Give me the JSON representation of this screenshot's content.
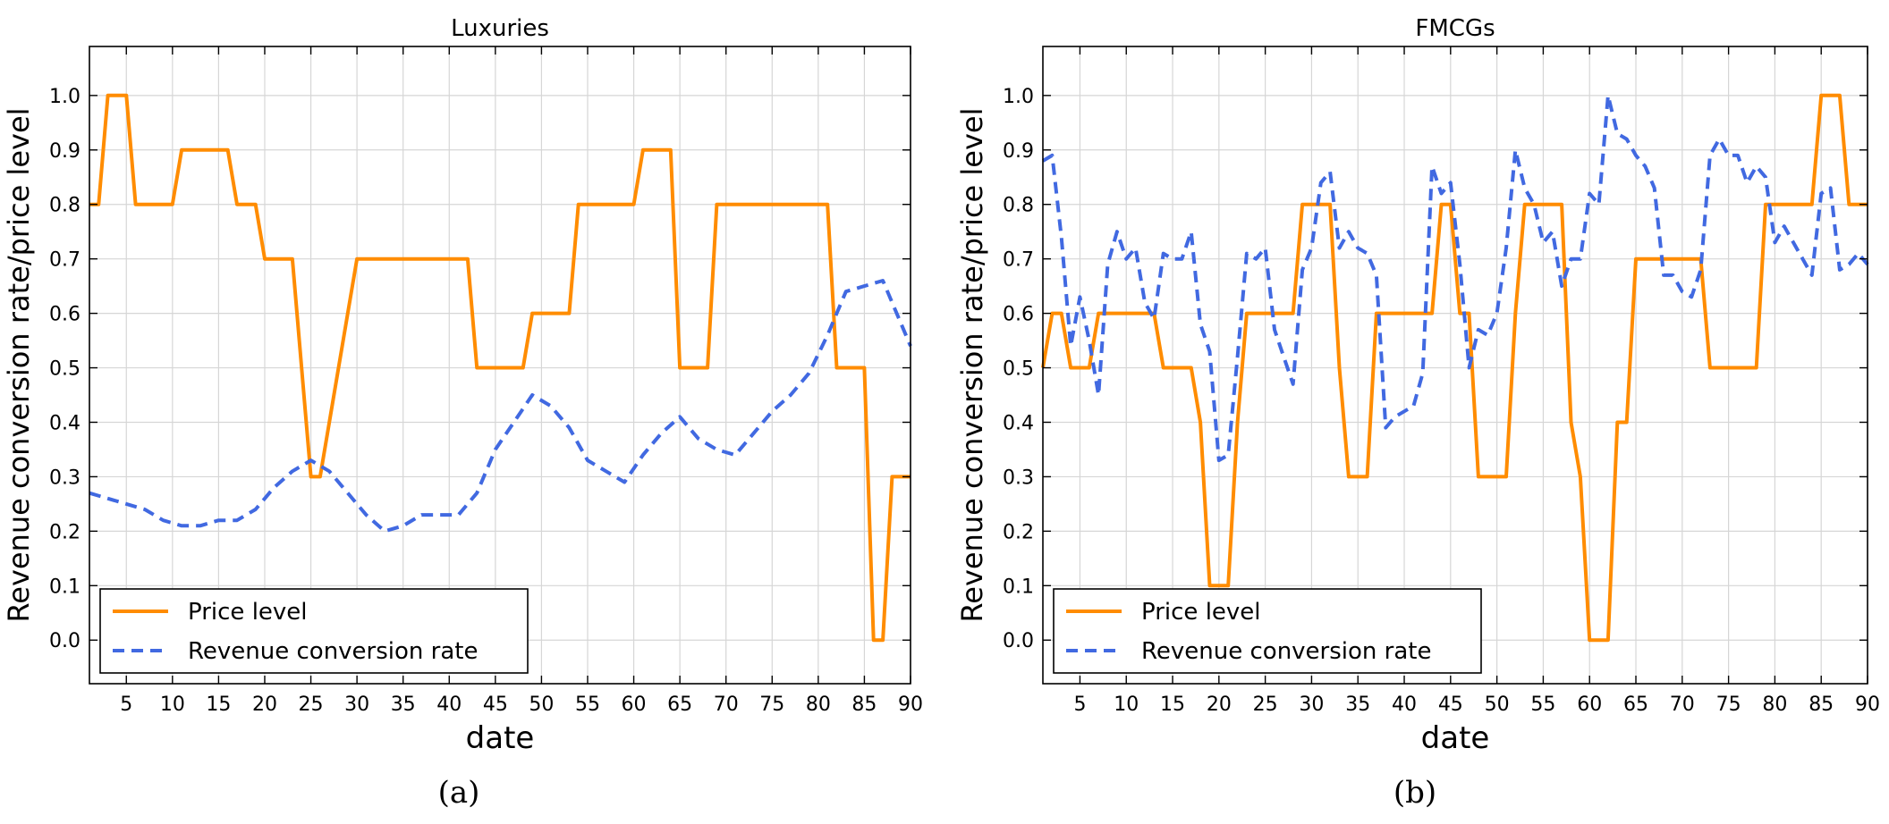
{
  "figure": {
    "captions": [
      "(a)",
      "(b)"
    ]
  },
  "chart_data": [
    {
      "type": "line",
      "title": "Luxuries",
      "xlabel": "date",
      "ylabel": "Revenue conversion rate/price level",
      "xlim": [
        1,
        90
      ],
      "ylim": [
        -0.08,
        1.09
      ],
      "xticks": [
        5,
        10,
        15,
        20,
        25,
        30,
        35,
        40,
        45,
        50,
        55,
        60,
        65,
        70,
        75,
        80,
        85,
        90
      ],
      "yticks": [
        0.0,
        0.1,
        0.2,
        0.3,
        0.4,
        0.5,
        0.6,
        0.7,
        0.8,
        0.9,
        1.0
      ],
      "grid": true,
      "legend": "lower-left",
      "series": [
        {
          "name": "Price level",
          "style": "solid",
          "color": "#ff8c00",
          "x": [
            1,
            2,
            3,
            4,
            5,
            6,
            7,
            8,
            9,
            10,
            11,
            12,
            13,
            14,
            15,
            16,
            17,
            18,
            19,
            20,
            21,
            22,
            23,
            24,
            25,
            26,
            27,
            28,
            29,
            30,
            31,
            32,
            33,
            34,
            35,
            36,
            37,
            38,
            39,
            40,
            41,
            42,
            43,
            44,
            45,
            46,
            47,
            48,
            49,
            50,
            51,
            52,
            53,
            54,
            55,
            56,
            57,
            58,
            59,
            60,
            61,
            62,
            63,
            64,
            65,
            66,
            67,
            68,
            69,
            70,
            71,
            72,
            73,
            74,
            75,
            76,
            77,
            78,
            79,
            80,
            81,
            82,
            83,
            84,
            85,
            86,
            87,
            88,
            89,
            90
          ],
          "y": [
            0.8,
            0.8,
            1.0,
            1.0,
            1.0,
            0.8,
            0.8,
            0.8,
            0.8,
            0.8,
            0.9,
            0.9,
            0.9,
            0.9,
            0.9,
            0.9,
            0.8,
            0.8,
            0.8,
            0.7,
            0.7,
            0.7,
            0.7,
            0.5,
            0.3,
            0.3,
            0.4,
            0.5,
            0.6,
            0.7,
            0.7,
            0.7,
            0.7,
            0.7,
            0.7,
            0.7,
            0.7,
            0.7,
            0.7,
            0.7,
            0.7,
            0.7,
            0.5,
            0.5,
            0.5,
            0.5,
            0.5,
            0.5,
            0.6,
            0.6,
            0.6,
            0.6,
            0.6,
            0.8,
            0.8,
            0.8,
            0.8,
            0.8,
            0.8,
            0.8,
            0.9,
            0.9,
            0.9,
            0.9,
            0.5,
            0.5,
            0.5,
            0.5,
            0.8,
            0.8,
            0.8,
            0.8,
            0.8,
            0.8,
            0.8,
            0.8,
            0.8,
            0.8,
            0.8,
            0.8,
            0.8,
            0.5,
            0.5,
            0.5,
            0.5,
            0.0,
            0.0,
            0.3,
            0.3,
            0.3
          ]
        },
        {
          "name": "Revenue conversion rate",
          "style": "dashed",
          "color": "#4169e1",
          "x": [
            1,
            3,
            5,
            7,
            9,
            11,
            13,
            15,
            17,
            19,
            21,
            23,
            25,
            27,
            29,
            31,
            33,
            35,
            37,
            39,
            41,
            43,
            45,
            47,
            49,
            51,
            53,
            55,
            57,
            59,
            61,
            63,
            65,
            67,
            69,
            71,
            73,
            75,
            77,
            79,
            81,
            83,
            85,
            87,
            89,
            90
          ],
          "y": [
            0.27,
            0.26,
            0.25,
            0.24,
            0.22,
            0.21,
            0.21,
            0.22,
            0.22,
            0.24,
            0.28,
            0.31,
            0.33,
            0.31,
            0.27,
            0.23,
            0.2,
            0.21,
            0.23,
            0.23,
            0.23,
            0.27,
            0.35,
            0.4,
            0.45,
            0.43,
            0.39,
            0.33,
            0.31,
            0.29,
            0.34,
            0.38,
            0.41,
            0.37,
            0.35,
            0.34,
            0.38,
            0.42,
            0.45,
            0.49,
            0.56,
            0.64,
            0.65,
            0.66,
            0.58,
            0.54
          ]
        }
      ]
    },
    {
      "type": "line",
      "title": "FMCGs",
      "xlabel": "date",
      "ylabel": "Revenue conversion rate/price level",
      "xlim": [
        1,
        90
      ],
      "ylim": [
        -0.08,
        1.09
      ],
      "xticks": [
        5,
        10,
        15,
        20,
        25,
        30,
        35,
        40,
        45,
        50,
        55,
        60,
        65,
        70,
        75,
        80,
        85,
        90
      ],
      "yticks": [
        0.0,
        0.1,
        0.2,
        0.3,
        0.4,
        0.5,
        0.6,
        0.7,
        0.8,
        0.9,
        1.0
      ],
      "grid": true,
      "legend": "lower-left",
      "series": [
        {
          "name": "Price level",
          "style": "solid",
          "color": "#ff8c00",
          "x": [
            1,
            2,
            3,
            4,
            5,
            6,
            7,
            8,
            9,
            10,
            11,
            12,
            13,
            14,
            15,
            16,
            17,
            18,
            19,
            20,
            21,
            22,
            23,
            24,
            25,
            26,
            27,
            28,
            29,
            30,
            31,
            32,
            33,
            34,
            35,
            36,
            37,
            38,
            39,
            40,
            41,
            42,
            43,
            44,
            45,
            46,
            47,
            48,
            49,
            50,
            51,
            52,
            53,
            54,
            55,
            56,
            57,
            58,
            59,
            60,
            61,
            62,
            63,
            64,
            65,
            66,
            67,
            68,
            69,
            70,
            71,
            72,
            73,
            74,
            75,
            76,
            77,
            78,
            79,
            80,
            81,
            82,
            83,
            84,
            85,
            86,
            87,
            88,
            89,
            90
          ],
          "y": [
            0.5,
            0.6,
            0.6,
            0.5,
            0.5,
            0.5,
            0.6,
            0.6,
            0.6,
            0.6,
            0.6,
            0.6,
            0.6,
            0.5,
            0.5,
            0.5,
            0.5,
            0.4,
            0.1,
            0.1,
            0.1,
            0.4,
            0.6,
            0.6,
            0.6,
            0.6,
            0.6,
            0.6,
            0.8,
            0.8,
            0.8,
            0.8,
            0.5,
            0.3,
            0.3,
            0.3,
            0.6,
            0.6,
            0.6,
            0.6,
            0.6,
            0.6,
            0.6,
            0.8,
            0.8,
            0.6,
            0.6,
            0.3,
            0.3,
            0.3,
            0.3,
            0.6,
            0.8,
            0.8,
            0.8,
            0.8,
            0.8,
            0.4,
            0.3,
            0.0,
            0.0,
            0.0,
            0.4,
            0.4,
            0.7,
            0.7,
            0.7,
            0.7,
            0.7,
            0.7,
            0.7,
            0.7,
            0.5,
            0.5,
            0.5,
            0.5,
            0.5,
            0.5,
            0.8,
            0.8,
            0.8,
            0.8,
            0.8,
            0.8,
            1.0,
            1.0,
            1.0,
            0.8,
            0.8,
            0.8
          ]
        },
        {
          "name": "Revenue conversion rate",
          "style": "dashed",
          "color": "#4169e1",
          "x": [
            1,
            2,
            3,
            4,
            5,
            6,
            7,
            8,
            9,
            10,
            11,
            12,
            13,
            14,
            15,
            16,
            17,
            18,
            19,
            20,
            21,
            22,
            23,
            24,
            25,
            26,
            27,
            28,
            29,
            30,
            31,
            32,
            33,
            34,
            35,
            36,
            37,
            38,
            39,
            40,
            41,
            42,
            43,
            44,
            45,
            46,
            47,
            48,
            49,
            50,
            51,
            52,
            53,
            54,
            55,
            56,
            57,
            58,
            59,
            60,
            61,
            62,
            63,
            64,
            65,
            66,
            67,
            68,
            69,
            70,
            71,
            72,
            73,
            74,
            75,
            76,
            77,
            78,
            79,
            80,
            81,
            82,
            83,
            84,
            85,
            86,
            87,
            88,
            89,
            90
          ],
          "y": [
            0.88,
            0.89,
            0.74,
            0.54,
            0.63,
            0.55,
            0.45,
            0.69,
            0.75,
            0.7,
            0.72,
            0.62,
            0.59,
            0.71,
            0.7,
            0.7,
            0.75,
            0.58,
            0.53,
            0.33,
            0.34,
            0.52,
            0.71,
            0.7,
            0.72,
            0.57,
            0.52,
            0.47,
            0.68,
            0.72,
            0.84,
            0.86,
            0.72,
            0.75,
            0.72,
            0.71,
            0.67,
            0.39,
            0.41,
            0.42,
            0.43,
            0.49,
            0.87,
            0.82,
            0.84,
            0.69,
            0.5,
            0.57,
            0.56,
            0.6,
            0.72,
            0.9,
            0.83,
            0.8,
            0.73,
            0.75,
            0.65,
            0.7,
            0.7,
            0.82,
            0.8,
            1.0,
            0.93,
            0.92,
            0.89,
            0.87,
            0.83,
            0.67,
            0.67,
            0.64,
            0.63,
            0.68,
            0.89,
            0.92,
            0.89,
            0.89,
            0.84,
            0.87,
            0.85,
            0.73,
            0.76,
            0.73,
            0.7,
            0.67,
            0.82,
            0.83,
            0.68,
            0.69,
            0.71,
            0.69
          ]
        }
      ]
    }
  ]
}
